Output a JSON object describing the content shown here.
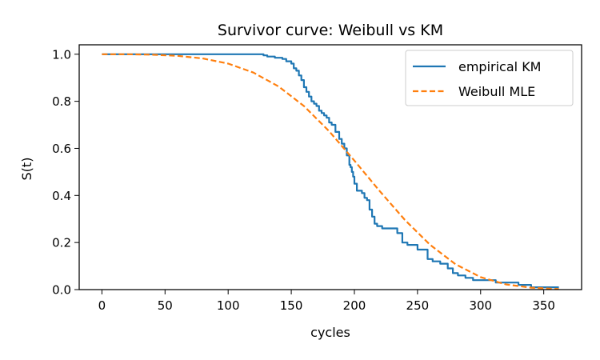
{
  "chart_data": {
    "type": "line",
    "title": "Survivor curve: Weibull vs KM",
    "xlabel": "cycles",
    "ylabel": "S(t)",
    "xlim": [
      -18,
      380
    ],
    "ylim": [
      0,
      1.04
    ],
    "xticks": [
      0,
      50,
      100,
      150,
      200,
      250,
      300,
      350
    ],
    "yticks": [
      0.0,
      0.2,
      0.4,
      0.6,
      0.8,
      1.0
    ],
    "grid": false,
    "legend_position": "top-right",
    "series": [
      {
        "name": "empirical KM",
        "style": "step",
        "color": "#1f77b4",
        "x": [
          0,
          128,
          131,
          137,
          143,
          146,
          150,
          152,
          154,
          156,
          158,
          160,
          162,
          164,
          166,
          168,
          170,
          172,
          174,
          176,
          178,
          180,
          182,
          185,
          188,
          190,
          192,
          194,
          196,
          197,
          198,
          199,
          200,
          202,
          204,
          206,
          208,
          210,
          212,
          214,
          216,
          218,
          220,
          222,
          230,
          234,
          238,
          242,
          250,
          256,
          258,
          262,
          268,
          274,
          278,
          282,
          288,
          294,
          300,
          312,
          330,
          340,
          362
        ],
        "y": [
          1.0,
          0.995,
          0.99,
          0.985,
          0.98,
          0.97,
          0.96,
          0.94,
          0.93,
          0.91,
          0.89,
          0.86,
          0.84,
          0.82,
          0.8,
          0.79,
          0.78,
          0.76,
          0.75,
          0.74,
          0.73,
          0.71,
          0.7,
          0.67,
          0.64,
          0.62,
          0.6,
          0.57,
          0.53,
          0.52,
          0.5,
          0.48,
          0.45,
          0.42,
          0.42,
          0.41,
          0.39,
          0.38,
          0.34,
          0.31,
          0.28,
          0.27,
          0.27,
          0.26,
          0.26,
          0.24,
          0.2,
          0.19,
          0.17,
          0.17,
          0.13,
          0.12,
          0.11,
          0.09,
          0.07,
          0.06,
          0.05,
          0.04,
          0.04,
          0.03,
          0.02,
          0.01,
          0.01
        ]
      },
      {
        "name": "Weibull MLE",
        "style": "dashed",
        "color": "#ff7f0e",
        "x": [
          0,
          20,
          40,
          60,
          80,
          100,
          120,
          140,
          160,
          180,
          200,
          220,
          240,
          260,
          280,
          300,
          320,
          340,
          362
        ],
        "y": [
          1.0,
          1.0,
          0.998,
          0.993,
          0.982,
          0.96,
          0.922,
          0.863,
          0.78,
          0.673,
          0.548,
          0.419,
          0.296,
          0.19,
          0.108,
          0.053,
          0.022,
          0.008,
          0.002
        ]
      }
    ]
  }
}
